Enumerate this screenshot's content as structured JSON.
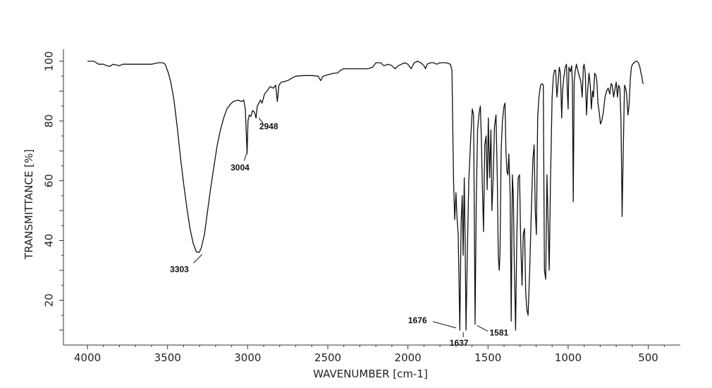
{
  "chart_data": {
    "type": "line",
    "xlabel": "WAVENUMBER [cm-1]",
    "ylabel": "TRANSMITTANCE [%]",
    "xlim": [
      4150,
      300
    ],
    "ylim": [
      5,
      104
    ],
    "x_reversed": true,
    "grid": false,
    "x_ticks": [
      {
        "value": 4000,
        "label": "4000"
      },
      {
        "value": 3500,
        "label": "3500"
      },
      {
        "value": 3000,
        "label": "3000"
      },
      {
        "value": 2500,
        "label": "2500"
      },
      {
        "value": 2000,
        "label": "2000"
      },
      {
        "value": 1500,
        "label": "1500"
      },
      {
        "value": 1000,
        "label": "1000"
      },
      {
        "value": 500,
        "label": "500"
      }
    ],
    "y_ticks": [
      {
        "value": 20,
        "label": "20"
      },
      {
        "value": 40,
        "label": "40"
      },
      {
        "value": 60,
        "label": "60"
      },
      {
        "value": 80,
        "label": "80"
      },
      {
        "value": 100,
        "label": "100"
      }
    ],
    "peaks": [
      {
        "label": "3303",
        "x": 3303,
        "y": 36
      },
      {
        "label": "3004",
        "x": 3004,
        "y": 70
      },
      {
        "label": "2948",
        "x": 2948,
        "y": 82
      },
      {
        "label": "1676",
        "x": 1676,
        "y": 10
      },
      {
        "label": "1637",
        "x": 1637,
        "y": 10
      },
      {
        "label": "1581",
        "x": 1581,
        "y": 12
      }
    ],
    "series": [
      {
        "color": "#111111",
        "points": [
          [
            4000,
            100
          ],
          [
            3960,
            100
          ],
          [
            3930,
            99
          ],
          [
            3900,
            99
          ],
          [
            3880,
            98.5
          ],
          [
            3860,
            98.3
          ],
          [
            3840,
            99
          ],
          [
            3800,
            98.5
          ],
          [
            3780,
            99
          ],
          [
            3700,
            99
          ],
          [
            3650,
            99
          ],
          [
            3600,
            99
          ],
          [
            3560,
            99.5
          ],
          [
            3530,
            99.5
          ],
          [
            3515,
            99
          ],
          [
            3505,
            97.5
          ],
          [
            3495,
            96
          ],
          [
            3480,
            93
          ],
          [
            3460,
            87
          ],
          [
            3440,
            78
          ],
          [
            3420,
            68
          ],
          [
            3400,
            59
          ],
          [
            3380,
            51
          ],
          [
            3360,
            44
          ],
          [
            3340,
            39
          ],
          [
            3320,
            36.2
          ],
          [
            3303,
            36
          ],
          [
            3290,
            37.5
          ],
          [
            3270,
            42
          ],
          [
            3250,
            50
          ],
          [
            3230,
            58
          ],
          [
            3210,
            65
          ],
          [
            3190,
            72
          ],
          [
            3170,
            77
          ],
          [
            3150,
            81
          ],
          [
            3130,
            84
          ],
          [
            3110,
            85.5
          ],
          [
            3090,
            86.5
          ],
          [
            3060,
            87
          ],
          [
            3040,
            86.5
          ],
          [
            3025,
            87
          ],
          [
            3015,
            84
          ],
          [
            3004,
            69
          ],
          [
            2998,
            80
          ],
          [
            2990,
            82
          ],
          [
            2980,
            81.5
          ],
          [
            2970,
            83.5
          ],
          [
            2958,
            83
          ],
          [
            2948,
            81
          ],
          [
            2940,
            85
          ],
          [
            2920,
            87
          ],
          [
            2910,
            86
          ],
          [
            2895,
            89
          ],
          [
            2880,
            90
          ],
          [
            2860,
            91.5
          ],
          [
            2840,
            91
          ],
          [
            2825,
            92
          ],
          [
            2815,
            86.5
          ],
          [
            2805,
            92
          ],
          [
            2790,
            93
          ],
          [
            2750,
            93.5
          ],
          [
            2720,
            94.5
          ],
          [
            2700,
            95
          ],
          [
            2650,
            95.2
          ],
          [
            2600,
            95.2
          ],
          [
            2560,
            95
          ],
          [
            2545,
            93.5
          ],
          [
            2530,
            95
          ],
          [
            2500,
            95.5
          ],
          [
            2460,
            96
          ],
          [
            2440,
            96
          ],
          [
            2420,
            97
          ],
          [
            2400,
            97.5
          ],
          [
            2350,
            97.5
          ],
          [
            2300,
            97.5
          ],
          [
            2250,
            97.5
          ],
          [
            2220,
            98
          ],
          [
            2200,
            99.5
          ],
          [
            2170,
            99.5
          ],
          [
            2150,
            98.5
          ],
          [
            2120,
            99
          ],
          [
            2100,
            98.5
          ],
          [
            2080,
            97.5
          ],
          [
            2060,
            98.5
          ],
          [
            2040,
            99
          ],
          [
            2020,
            99.5
          ],
          [
            2000,
            99
          ],
          [
            1980,
            97.5
          ],
          [
            1960,
            99.5
          ],
          [
            1940,
            100
          ],
          [
            1920,
            99.5
          ],
          [
            1900,
            98.5
          ],
          [
            1890,
            97.5
          ],
          [
            1880,
            99
          ],
          [
            1860,
            99.5
          ],
          [
            1840,
            99.5
          ],
          [
            1820,
            99
          ],
          [
            1800,
            99.5
          ],
          [
            1760,
            99.5
          ],
          [
            1735,
            99
          ],
          [
            1725,
            97
          ],
          [
            1715,
            60
          ],
          [
            1708,
            47
          ],
          [
            1700,
            56
          ],
          [
            1694,
            48
          ],
          [
            1686,
            42
          ],
          [
            1676,
            10
          ],
          [
            1668,
            46
          ],
          [
            1661,
            55
          ],
          [
            1655,
            35
          ],
          [
            1648,
            61
          ],
          [
            1643,
            40
          ],
          [
            1637,
            10
          ],
          [
            1630,
            33
          ],
          [
            1620,
            60
          ],
          [
            1608,
            74
          ],
          [
            1598,
            84
          ],
          [
            1590,
            82
          ],
          [
            1581,
            12
          ],
          [
            1573,
            55
          ],
          [
            1565,
            77
          ],
          [
            1555,
            83
          ],
          [
            1548,
            85
          ],
          [
            1542,
            75
          ],
          [
            1536,
            60
          ],
          [
            1528,
            43
          ],
          [
            1520,
            72
          ],
          [
            1512,
            75
          ],
          [
            1505,
            57
          ],
          [
            1498,
            81
          ],
          [
            1490,
            61
          ],
          [
            1482,
            77
          ],
          [
            1476,
            50
          ],
          [
            1468,
            60
          ],
          [
            1460,
            78
          ],
          [
            1450,
            82
          ],
          [
            1442,
            60
          ],
          [
            1436,
            35
          ],
          [
            1430,
            30
          ],
          [
            1425,
            36
          ],
          [
            1418,
            70
          ],
          [
            1410,
            80
          ],
          [
            1400,
            85
          ],
          [
            1394,
            86
          ],
          [
            1388,
            70
          ],
          [
            1382,
            63
          ],
          [
            1376,
            62
          ],
          [
            1370,
            69
          ],
          [
            1362,
            56
          ],
          [
            1355,
            13
          ],
          [
            1348,
            62
          ],
          [
            1342,
            55
          ],
          [
            1336,
            33
          ],
          [
            1328,
            10
          ],
          [
            1320,
            42
          ],
          [
            1312,
            61
          ],
          [
            1303,
            62
          ],
          [
            1296,
            40
          ],
          [
            1288,
            25
          ],
          [
            1280,
            42
          ],
          [
            1272,
            44
          ],
          [
            1265,
            23
          ],
          [
            1258,
            17
          ],
          [
            1250,
            15
          ],
          [
            1240,
            30
          ],
          [
            1230,
            49
          ],
          [
            1220,
            67
          ],
          [
            1212,
            72
          ],
          [
            1205,
            50
          ],
          [
            1198,
            42
          ],
          [
            1190,
            81
          ],
          [
            1182,
            88
          ],
          [
            1172,
            92
          ],
          [
            1162,
            92.5
          ],
          [
            1155,
            92
          ],
          [
            1148,
            30
          ],
          [
            1140,
            27
          ],
          [
            1132,
            62
          ],
          [
            1125,
            46
          ],
          [
            1118,
            30
          ],
          [
            1110,
            60
          ],
          [
            1100,
            88
          ],
          [
            1092,
            95
          ],
          [
            1085,
            97
          ],
          [
            1078,
            97
          ],
          [
            1070,
            88
          ],
          [
            1062,
            93
          ],
          [
            1055,
            98
          ],
          [
            1048,
            96
          ],
          [
            1040,
            81
          ],
          [
            1035,
            90
          ],
          [
            1028,
            94
          ],
          [
            1018,
            98
          ],
          [
            1010,
            99
          ],
          [
            1005,
            90
          ],
          [
            1000,
            84
          ],
          [
            995,
            98
          ],
          [
            985,
            96.5
          ],
          [
            978,
            98.5
          ],
          [
            973,
            92
          ],
          [
            968,
            53
          ],
          [
            962,
            93
          ],
          [
            955,
            97
          ],
          [
            948,
            99
          ],
          [
            940,
            97
          ],
          [
            930,
            95
          ],
          [
            920,
            93
          ],
          [
            912,
            88
          ],
          [
            905,
            98
          ],
          [
            900,
            99
          ],
          [
            893,
            96
          ],
          [
            885,
            82
          ],
          [
            878,
            90
          ],
          [
            870,
            96
          ],
          [
            862,
            92
          ],
          [
            855,
            84
          ],
          [
            848,
            90
          ],
          [
            842,
            88
          ],
          [
            834,
            96
          ],
          [
            826,
            95
          ],
          [
            820,
            93
          ],
          [
            814,
            86
          ],
          [
            806,
            83
          ],
          [
            798,
            79
          ],
          [
            790,
            80
          ],
          [
            780,
            83
          ],
          [
            770,
            88
          ],
          [
            760,
            90
          ],
          [
            750,
            91
          ],
          [
            740,
            89
          ],
          [
            732,
            92.5
          ],
          [
            725,
            92
          ],
          [
            716,
            88
          ],
          [
            710,
            90
          ],
          [
            700,
            93
          ],
          [
            692,
            88
          ],
          [
            685,
            92
          ],
          [
            677,
            91
          ],
          [
            670,
            80
          ],
          [
            663,
            48
          ],
          [
            656,
            70
          ],
          [
            648,
            92
          ],
          [
            641,
            91
          ],
          [
            635,
            89
          ],
          [
            627,
            82
          ],
          [
            620,
            85
          ],
          [
            612,
            94
          ],
          [
            605,
            98
          ],
          [
            598,
            99
          ],
          [
            588,
            99.5
          ],
          [
            578,
            100
          ],
          [
            570,
            100
          ],
          [
            562,
            99.5
          ],
          [
            552,
            98
          ],
          [
            545,
            96
          ],
          [
            540,
            95
          ],
          [
            535,
            93
          ],
          [
            530,
            92.5
          ]
        ]
      }
    ]
  }
}
